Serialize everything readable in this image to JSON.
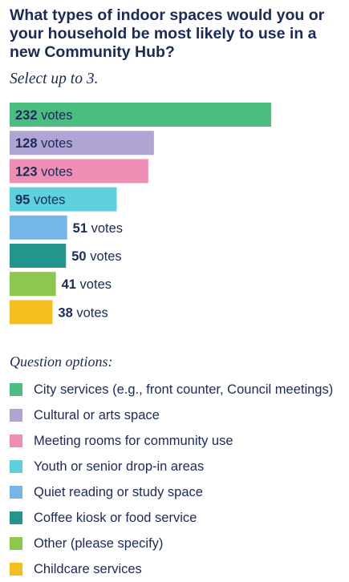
{
  "question": "What types of indoor spaces would you or your household be most likely to use in a new Community Hub?",
  "instruction": "Select up to 3.",
  "legend_title": "Question options:",
  "chart_data": {
    "type": "bar",
    "orientation": "horizontal",
    "categories": [
      "City services (e.g., front counter, Council meetings)",
      "Cultural or arts space",
      "Meeting rooms for community use",
      "Youth or senior drop-in areas",
      "Quiet reading or study space",
      "Coffee kiosk or food service",
      "Other (please specify)",
      "Childcare services"
    ],
    "values": [
      232,
      128,
      123,
      95,
      51,
      50,
      41,
      38
    ],
    "value_suffix": "votes",
    "colors": [
      "#4cbd80",
      "#b0a4d4",
      "#f08fb6",
      "#5ed0de",
      "#74b6e8",
      "#22968c",
      "#8cc84f",
      "#f4bf1e"
    ],
    "legend": "bottom",
    "grid": false
  }
}
